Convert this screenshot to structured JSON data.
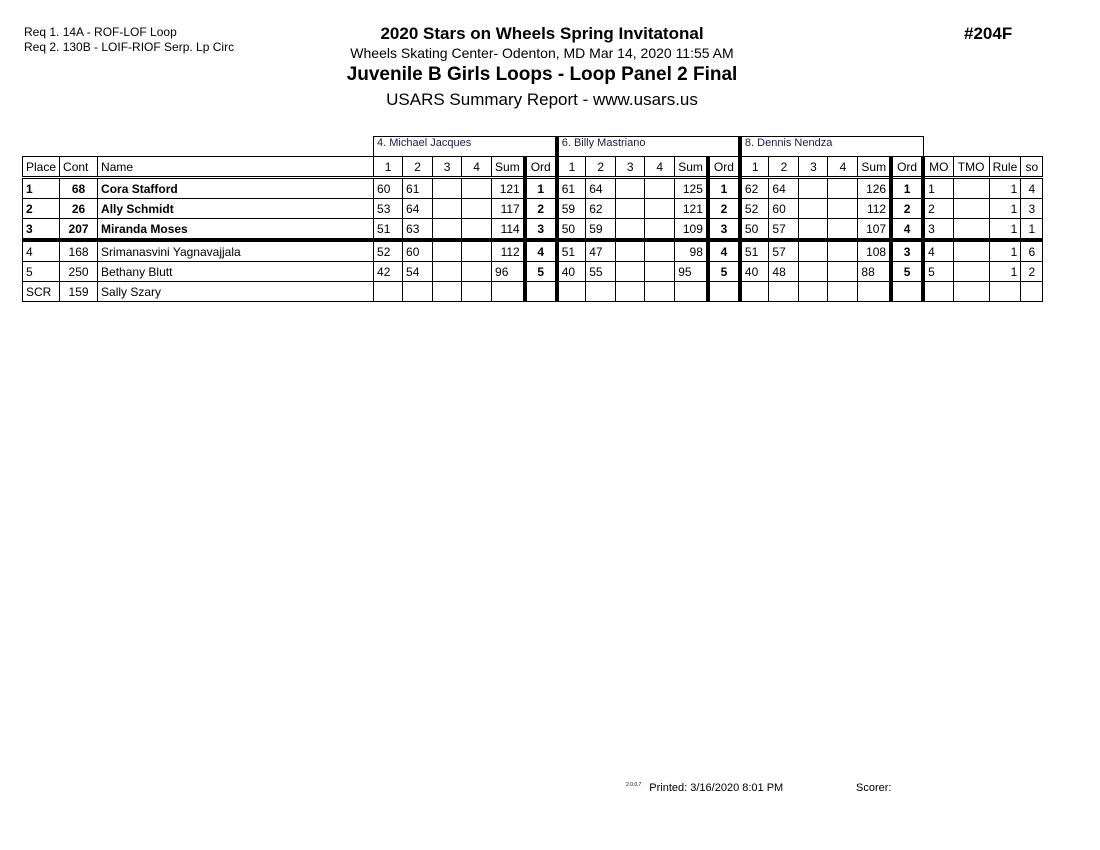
{
  "requirements": [
    "Req  1.  14A - ROF-LOF Loop",
    "Req  2.  130B - LOIF-RIOF Serp. Lp Circ"
  ],
  "header": {
    "event": "2020 Stars on Wheels Spring Invitatonal",
    "venue": "Wheels Skating Center- Odenton, MD  Mar 14, 2020  11:55 AM",
    "category": "Juvenile B Girls Loops - Loop Panel 2 Final",
    "report": "USARS Summary Report - www.usars.us",
    "event_number": "#204F"
  },
  "judges": [
    "4.  Michael Jacques",
    "6.  Billy Mastriano",
    "8.  Dennis Nendza"
  ],
  "columns": {
    "place": "Place",
    "cont": "Cont",
    "name": "Name",
    "judge_cols": [
      "1",
      "2",
      "3",
      "4",
      "Sum",
      "Ord"
    ],
    "mo": "MO",
    "tmo": "TMO",
    "rule": "Rule",
    "so": "so"
  },
  "rows": [
    {
      "place": "1",
      "cont": "68",
      "name": "Cora Stafford",
      "bold": true,
      "scores": [
        [
          "60",
          "61",
          "",
          "",
          "121",
          "1"
        ],
        [
          "61",
          "64",
          "",
          "",
          "125",
          "1"
        ],
        [
          "62",
          "64",
          "",
          "",
          "126",
          "1"
        ]
      ],
      "mo": "1",
      "tmo": "",
      "rule": "1",
      "so": "4"
    },
    {
      "place": "2",
      "cont": "26",
      "name": "Ally Schmidt",
      "bold": true,
      "scores": [
        [
          "53",
          "64",
          "",
          "",
          "117",
          "2"
        ],
        [
          "59",
          "62",
          "",
          "",
          "121",
          "2"
        ],
        [
          "52",
          "60",
          "",
          "",
          "112",
          "2"
        ]
      ],
      "mo": "2",
      "tmo": "",
      "rule": "1",
      "so": "3"
    },
    {
      "place": "3",
      "cont": "207",
      "name": "Miranda Moses",
      "bold": true,
      "scores": [
        [
          "51",
          "63",
          "",
          "",
          "114",
          "3"
        ],
        [
          "50",
          "59",
          "",
          "",
          "109",
          "3"
        ],
        [
          "50",
          "57",
          "",
          "",
          "107",
          "4"
        ]
      ],
      "mo": "3",
      "tmo": "",
      "rule": "1",
      "so": "1"
    },
    {
      "place": "4",
      "cont": "168",
      "name": "Srimanasvini Yagnavajjala",
      "bold": false,
      "scores": [
        [
          "52",
          "60",
          "",
          "",
          "112",
          "4"
        ],
        [
          "51",
          "47",
          "",
          "",
          "98",
          "4"
        ],
        [
          "51",
          "57",
          "",
          "",
          "108",
          "3"
        ]
      ],
      "mo": "4",
      "tmo": "",
      "rule": "1",
      "so": "6"
    },
    {
      "place": "5",
      "cont": "250",
      "name": "Bethany Blutt",
      "bold": false,
      "scores": [
        [
          "42",
          "54",
          "",
          "",
          "96",
          "5"
        ],
        [
          "40",
          "55",
          "",
          "",
          "95",
          "5"
        ],
        [
          "40",
          "48",
          "",
          "",
          "88",
          "5"
        ]
      ],
      "mo": "5",
      "tmo": "",
      "rule": "1",
      "so": "2"
    },
    {
      "place": "SCR",
      "cont": "159",
      "name": "Sally Szary",
      "bold": false,
      "scores": [
        [
          "",
          "",
          "",
          "",
          "",
          ""
        ],
        [
          "",
          "",
          "",
          "",
          "",
          ""
        ],
        [
          "",
          "",
          "",
          "",
          "",
          ""
        ]
      ],
      "mo": "",
      "tmo": "",
      "rule": "",
      "so": ""
    }
  ],
  "footer": {
    "version": "2.0.0.7",
    "printed": "Printed:  3/16/2020  8:01 PM",
    "scorer": "Scorer:"
  }
}
